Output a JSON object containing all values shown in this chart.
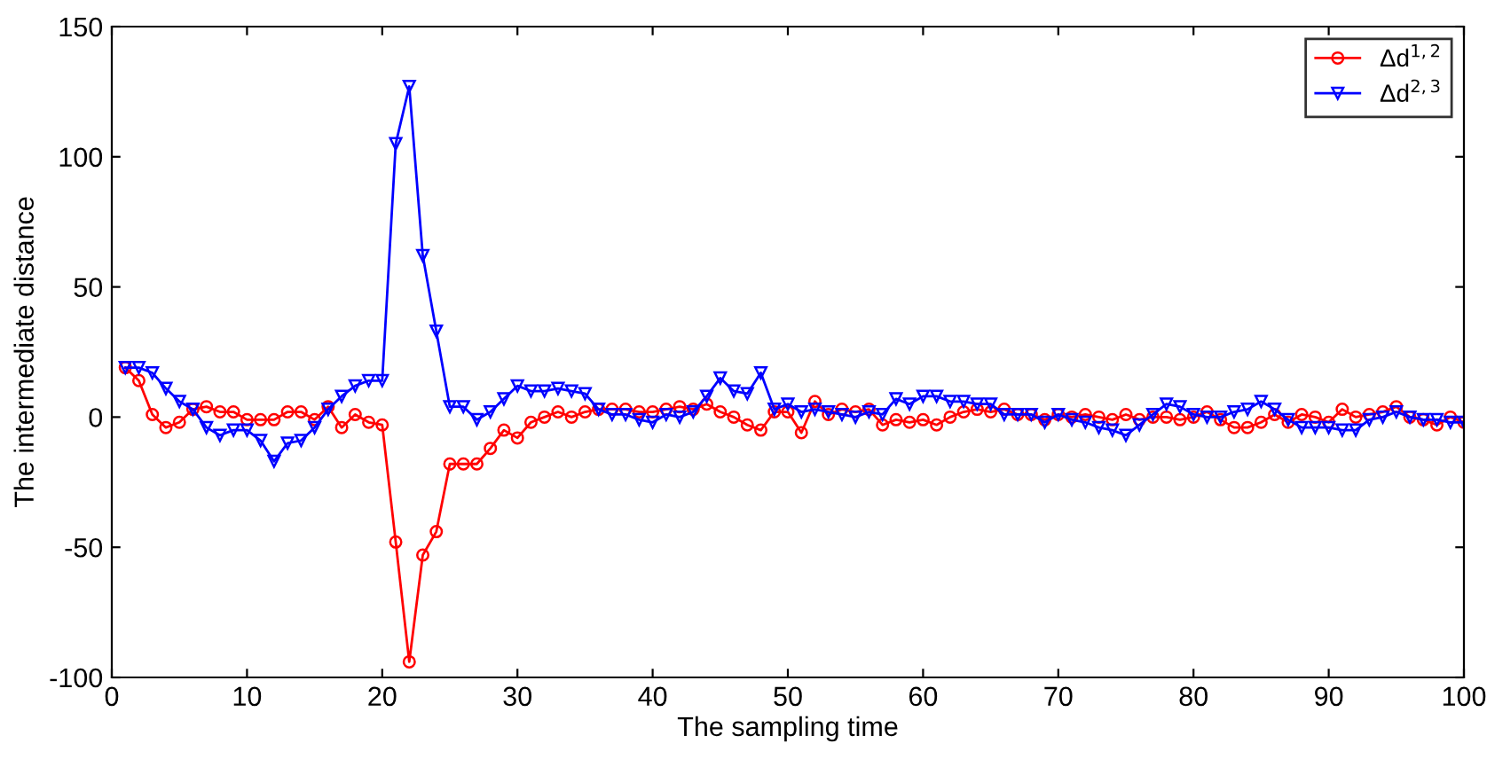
{
  "chart_data": {
    "type": "line",
    "xlabel": "The sampling time",
    "ylabel": "The intermediate distance",
    "x": [
      1,
      2,
      3,
      4,
      5,
      6,
      7,
      8,
      9,
      10,
      11,
      12,
      13,
      14,
      15,
      16,
      17,
      18,
      19,
      20,
      21,
      22,
      23,
      24,
      25,
      26,
      27,
      28,
      29,
      30,
      31,
      32,
      33,
      34,
      35,
      36,
      37,
      38,
      39,
      40,
      41,
      42,
      43,
      44,
      45,
      46,
      47,
      48,
      49,
      50,
      51,
      52,
      53,
      54,
      55,
      56,
      57,
      58,
      59,
      60,
      61,
      62,
      63,
      64,
      65,
      66,
      67,
      68,
      69,
      70,
      71,
      72,
      73,
      74,
      75,
      76,
      77,
      78,
      79,
      80,
      81,
      82,
      83,
      84,
      85,
      86,
      87,
      88,
      89,
      90,
      91,
      92,
      93,
      94,
      95,
      96,
      97,
      98,
      99,
      100
    ],
    "series": [
      {
        "name": "Δd$^{1,2}$",
        "color": "#ff0000",
        "marker": "circle",
        "values": [
          19,
          14,
          1,
          -4,
          -2,
          3,
          4,
          2,
          2,
          -1,
          -1,
          -1,
          2,
          2,
          -1,
          4,
          -4,
          1,
          -2,
          -3,
          -48,
          -94,
          -53,
          -44,
          -18,
          -18,
          -18,
          -12,
          -5,
          -8,
          -2,
          0,
          2,
          0,
          2,
          3,
          3,
          3,
          2,
          2,
          3,
          4,
          3,
          5,
          2,
          0,
          -3,
          -5,
          2,
          2,
          -6,
          6,
          1,
          3,
          2,
          3,
          -3,
          -1,
          -2,
          -1,
          -3,
          0,
          2,
          3,
          2,
          3,
          1,
          1,
          -1,
          1,
          0,
          1,
          0,
          -1,
          1,
          -1,
          0,
          0,
          -1,
          0,
          2,
          -1,
          -4,
          -4,
          -2,
          1,
          -2,
          1,
          0,
          -2,
          3,
          0,
          1,
          2,
          4,
          0,
          -1,
          -3,
          0,
          -2
        ]
      },
      {
        "name": "Δd$^{2,3}$",
        "color": "#0000ff",
        "marker": "triangle",
        "values": [
          19,
          19,
          17,
          11,
          6,
          3,
          -4,
          -7,
          -5,
          -5,
          -9,
          -17,
          -10,
          -9,
          -4,
          3,
          8,
          12,
          14,
          14,
          105,
          127,
          62,
          33,
          4,
          4,
          -1,
          2,
          7,
          12,
          10,
          10,
          11,
          10,
          9,
          3,
          1,
          1,
          -1,
          -2,
          1,
          0,
          2,
          8,
          15,
          10,
          9,
          17,
          3,
          5,
          2,
          3,
          2,
          1,
          0,
          2,
          1,
          7,
          5,
          8,
          8,
          6,
          6,
          5,
          5,
          1,
          1,
          1,
          -2,
          1,
          -1,
          -2,
          -4,
          -5,
          -7,
          -3,
          1,
          5,
          4,
          1,
          0,
          0,
          2,
          3,
          6,
          3,
          -1,
          -4,
          -4,
          -4,
          -5,
          -5,
          -1,
          0,
          2,
          0,
          -1,
          -1,
          -2,
          -2
        ]
      }
    ],
    "xlim": [
      0,
      100
    ],
    "xticks": [
      0,
      10,
      20,
      30,
      40,
      50,
      60,
      70,
      80,
      90,
      100
    ],
    "ylim": [
      -100,
      150
    ],
    "yticks": [
      -100,
      -50,
      0,
      50,
      100,
      150
    ],
    "legend": "top right",
    "line_style": "solid"
  }
}
